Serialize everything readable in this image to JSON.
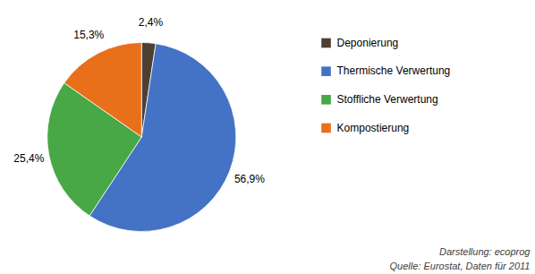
{
  "chart_data": {
    "type": "pie",
    "categories": [
      "Deponierung",
      "Thermische Verwertung",
      "Stoffliche Verwertung",
      "Kompostierung"
    ],
    "values": [
      2.4,
      56.9,
      25.4,
      15.3
    ],
    "value_labels": [
      "2,4%",
      "56,9%",
      "25,4%",
      "15,3%"
    ],
    "colors": [
      "#4d4032",
      "#4472c4",
      "#48a846",
      "#e8701a"
    ],
    "data_labels": true,
    "legend": "right",
    "annotations": [
      "Darstellung: ecoprog",
      "Quelle: Eurostat, Daten für 2011"
    ]
  }
}
